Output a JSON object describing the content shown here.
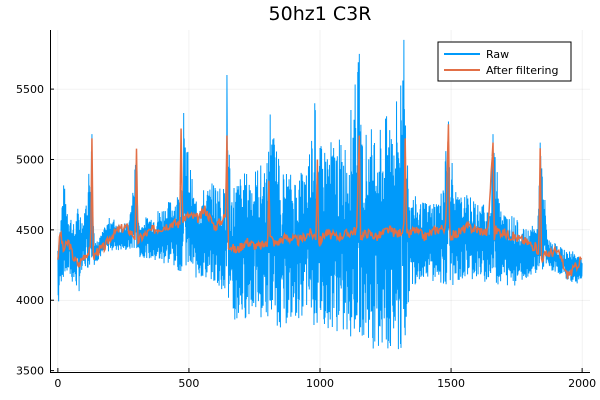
{
  "chart_data": {
    "type": "line",
    "title": "50hz1 C3R",
    "xlabel": "",
    "ylabel": "",
    "xlim": [
      -30,
      2030
    ],
    "ylim": [
      3490,
      5920
    ],
    "xticks": [
      0,
      500,
      1000,
      1500,
      2000
    ],
    "xtick_labels": [
      "0",
      "500",
      "1000",
      "1500",
      "2000"
    ],
    "yticks": [
      3500,
      4000,
      4500,
      5000,
      5500
    ],
    "ytick_labels": [
      "3500",
      "4000",
      "4500",
      "5000",
      "5500"
    ],
    "grid": true,
    "legend_position": "top-right",
    "series": [
      {
        "name": "Raw",
        "color": "#009AFA",
        "style": "dense-oscillating",
        "x": [
          0,
          10,
          20,
          40,
          60,
          80,
          100,
          130,
          140,
          160,
          200,
          240,
          270,
          300,
          310,
          340,
          380,
          420,
          470,
          480,
          520,
          560,
          600,
          640,
          645,
          660,
          700,
          750,
          800,
          810,
          850,
          900,
          950,
          980,
          1000,
          1050,
          1100,
          1150,
          1160,
          1200,
          1250,
          1300,
          1320,
          1340,
          1380,
          1420,
          1460,
          1490,
          1520,
          1560,
          1600,
          1650,
          1660,
          1700,
          1740,
          1780,
          1830,
          1840,
          1870,
          1900,
          1940,
          1970,
          2000
        ],
        "y_upper": [
          4500,
          4600,
          4850,
          4700,
          4550,
          4700,
          4600,
          5180,
          4400,
          4450,
          4600,
          4550,
          4550,
          5050,
          4550,
          4600,
          4650,
          4700,
          4800,
          5330,
          4750,
          4800,
          4850,
          4800,
          5600,
          4850,
          4900,
          4950,
          5000,
          5320,
          4950,
          4900,
          5000,
          5400,
          5100,
          5150,
          5150,
          5750,
          5200,
          5250,
          5300,
          5500,
          5850,
          4800,
          4700,
          4700,
          4750,
          5270,
          4750,
          4750,
          4700,
          4700,
          5180,
          4650,
          4600,
          4500,
          4550,
          5120,
          4450,
          4400,
          4350,
          4350,
          4300
        ],
        "y_lower": [
          3850,
          4100,
          4150,
          4150,
          4100,
          4050,
          4200,
          4250,
          4250,
          4300,
          4350,
          4350,
          4350,
          4350,
          4300,
          4300,
          4250,
          4250,
          4200,
          4200,
          4150,
          4150,
          4100,
          4000,
          4000,
          3750,
          3850,
          3900,
          3850,
          3850,
          3800,
          3850,
          3900,
          3800,
          3800,
          3800,
          3700,
          3750,
          3750,
          3650,
          3600,
          3550,
          3550,
          4050,
          4150,
          4150,
          4100,
          4100,
          4100,
          4150,
          4150,
          4100,
          4100,
          4100,
          4100,
          4150,
          4200,
          4200,
          4200,
          4200,
          4150,
          4100,
          4150
        ]
      },
      {
        "name": "After filtering",
        "color": "#E26F46",
        "x": [
          0,
          10,
          20,
          40,
          60,
          80,
          100,
          125,
          130,
          135,
          150,
          180,
          200,
          230,
          260,
          280,
          295,
          300,
          305,
          320,
          360,
          400,
          440,
          465,
          470,
          475,
          500,
          540,
          560,
          600,
          640,
          645,
          650,
          680,
          720,
          760,
          800,
          805,
          810,
          830,
          870,
          920,
          960,
          985,
          990,
          995,
          1020,
          1060,
          1100,
          1140,
          1150,
          1155,
          1180,
          1220,
          1260,
          1300,
          1320,
          1325,
          1330,
          1360,
          1400,
          1440,
          1480,
          1490,
          1495,
          1520,
          1560,
          1600,
          1640,
          1660,
          1665,
          1670,
          1700,
          1740,
          1780,
          1820,
          1835,
          1840,
          1845,
          1870,
          1900,
          1920,
          1940,
          1960,
          1980,
          2000
        ],
        "y": [
          4300,
          4500,
          4350,
          4420,
          4300,
          4250,
          4320,
          4350,
          5150,
          4300,
          4350,
          4380,
          4450,
          4500,
          4520,
          4480,
          4450,
          5050,
          4420,
          4450,
          4500,
          4520,
          4550,
          4540,
          5220,
          4580,
          4600,
          4580,
          4650,
          4520,
          4600,
          5170,
          4400,
          4350,
          4420,
          4380,
          4400,
          4850,
          4450,
          4400,
          4450,
          4420,
          4480,
          4450,
          5000,
          4400,
          4480,
          4450,
          4470,
          4500,
          5170,
          4450,
          4480,
          4450,
          4500,
          4470,
          4520,
          5150,
          4450,
          4500,
          4450,
          4500,
          4520,
          5250,
          4450,
          4470,
          4520,
          4500,
          4480,
          5120,
          4450,
          4500,
          4480,
          4450,
          4420,
          4380,
          4350,
          5080,
          4300,
          4330,
          4350,
          4300,
          4180,
          4200,
          4250,
          4300
        ]
      }
    ]
  }
}
